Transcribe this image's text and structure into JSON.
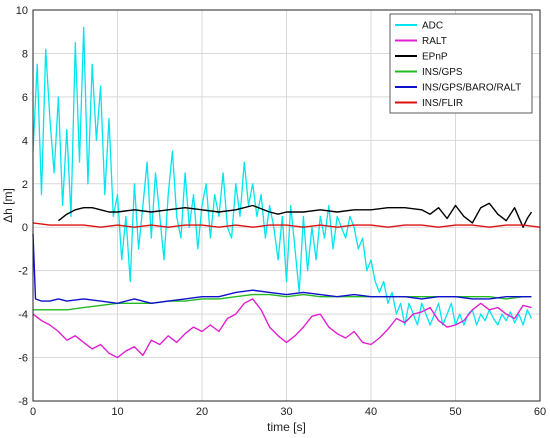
{
  "chart_data": {
    "type": "line",
    "title": "",
    "xlabel": "time  [s]",
    "ylabel": "Δh  [m]",
    "xlim": [
      0,
      60
    ],
    "ylim": [
      -8,
      10
    ],
    "xticks": [
      "0",
      "10",
      "20",
      "30",
      "40",
      "50",
      "60"
    ],
    "yticks": [
      "-8",
      "-6",
      "-4",
      "-2",
      "0",
      "2",
      "4",
      "6",
      "8",
      "10"
    ],
    "grid": true,
    "legend_position": "top-right",
    "series": [
      {
        "name": "ADC",
        "color": "#00e5ee",
        "x": [
          0,
          0.5,
          1,
          1.5,
          2,
          2.5,
          3,
          3.5,
          4,
          4.5,
          5,
          5.5,
          6,
          6.5,
          7,
          7.5,
          8,
          8.5,
          9,
          9.5,
          10,
          10.5,
          11,
          11.5,
          12,
          12.5,
          13,
          13.5,
          14,
          14.5,
          15,
          15.5,
          16,
          16.5,
          17,
          17.5,
          18,
          18.5,
          19,
          19.5,
          20,
          20.5,
          21,
          21.5,
          22,
          22.5,
          23,
          23.5,
          24,
          24.5,
          25,
          25.5,
          26,
          26.5,
          27,
          27.5,
          28,
          28.5,
          29,
          29.5,
          30,
          30.5,
          31,
          31.5,
          32,
          32.5,
          33,
          33.5,
          34,
          34.5,
          35,
          35.5,
          36,
          36.5,
          37,
          37.5,
          38,
          38.5,
          39,
          39.5,
          40,
          40.5,
          41,
          41.5,
          42,
          42.5,
          43,
          43.5,
          44,
          44.5,
          45,
          45.5,
          46,
          46.5,
          47,
          47.5,
          48,
          48.5,
          49,
          49.5,
          50,
          50.5,
          51,
          51.5,
          52,
          52.5,
          53,
          53.5,
          54,
          54.5,
          55,
          55.5,
          56,
          56.5,
          57,
          57.5,
          58,
          58.5,
          59
        ],
        "y": [
          3.5,
          7.5,
          1.5,
          8.2,
          5.0,
          2.5,
          6.0,
          1.0,
          4.5,
          0.5,
          8.5,
          3.0,
          9.2,
          2.0,
          7.5,
          4.0,
          6.5,
          1.5,
          5.0,
          0.5,
          1.5,
          -1.5,
          0.5,
          -2.5,
          2.0,
          -1.0,
          1.0,
          3.0,
          -0.5,
          2.5,
          0.5,
          -1.5,
          1.5,
          3.5,
          0.5,
          -0.5,
          2.5,
          0.0,
          1.5,
          -1.0,
          1.0,
          2.0,
          -0.5,
          1.5,
          0.5,
          2.5,
          0.0,
          -0.5,
          2.0,
          0.5,
          3.0,
          1.0,
          2.0,
          0.5,
          1.5,
          -0.5,
          1.0,
          0.0,
          -1.5,
          0.5,
          -2.5,
          1.0,
          -1.0,
          -3.0,
          0.5,
          -2.0,
          0.0,
          -1.5,
          0.5,
          -0.5,
          1.0,
          -1.0,
          0.5,
          0.0,
          -0.5,
          0.5,
          0.0,
          -1.0,
          -0.5,
          -2.0,
          -1.5,
          -2.5,
          -3.0,
          -2.5,
          -3.5,
          -3.0,
          -4.0,
          -3.5,
          -4.5,
          -3.5,
          -4.0,
          -4.5,
          -3.5,
          -4.0,
          -4.5,
          -4.0,
          -3.5,
          -4.5,
          -4.0,
          -3.5,
          -4.5,
          -4.0,
          -4.5,
          -4.0,
          -3.8,
          -4.5,
          -4.0,
          -4.3,
          -3.8,
          -4.2,
          -4.5,
          -4.0,
          -4.3,
          -3.9,
          -4.4,
          -4.0,
          -4.5,
          -3.8,
          -4.2
        ]
      },
      {
        "name": "RALT",
        "color": "#e020d0",
        "x": [
          0,
          1,
          2,
          3,
          4,
          5,
          6,
          7,
          8,
          9,
          10,
          11,
          12,
          13,
          14,
          15,
          16,
          17,
          18,
          19,
          20,
          21,
          22,
          23,
          24,
          25,
          26,
          27,
          28,
          29,
          30,
          31,
          32,
          33,
          34,
          35,
          36,
          37,
          38,
          39,
          40,
          41,
          42,
          43,
          44,
          45,
          46,
          47,
          48,
          49,
          50,
          51,
          52,
          53,
          54,
          55,
          56,
          57,
          58,
          59
        ],
        "y": [
          -4.0,
          -4.3,
          -4.5,
          -4.8,
          -5.2,
          -5.0,
          -5.3,
          -5.6,
          -5.4,
          -5.8,
          -6.0,
          -5.7,
          -5.5,
          -5.9,
          -5.2,
          -5.4,
          -5.0,
          -5.3,
          -4.9,
          -4.6,
          -4.8,
          -4.5,
          -4.8,
          -4.2,
          -4.0,
          -3.5,
          -3.3,
          -3.8,
          -4.6,
          -5.0,
          -5.3,
          -5.0,
          -4.6,
          -4.1,
          -4.0,
          -4.6,
          -4.9,
          -5.1,
          -4.8,
          -5.3,
          -5.4,
          -5.1,
          -4.7,
          -4.2,
          -4.4,
          -4.0,
          -3.9,
          -3.7,
          -4.3,
          -4.6,
          -4.5,
          -4.3,
          -3.8,
          -3.5,
          -3.8,
          -3.7,
          -4.0,
          -4.2,
          -3.6,
          -3.7
        ]
      },
      {
        "name": "EPnP",
        "color": "#000000",
        "x": [
          3,
          4,
          5,
          6,
          7,
          8,
          9,
          10,
          12,
          14,
          16,
          18,
          20,
          22,
          24,
          26,
          28,
          29,
          30,
          32,
          34,
          36,
          38,
          40,
          42,
          44,
          46,
          47,
          48,
          49,
          50,
          51,
          52,
          53,
          54,
          55,
          56,
          57,
          58,
          58.5,
          59
        ],
        "y": [
          0.3,
          0.6,
          0.8,
          0.9,
          0.9,
          0.8,
          0.7,
          0.7,
          0.8,
          0.7,
          0.8,
          0.9,
          0.8,
          0.7,
          0.8,
          1.0,
          0.7,
          0.6,
          0.7,
          0.7,
          0.8,
          0.7,
          0.8,
          0.8,
          0.9,
          0.9,
          0.8,
          0.6,
          0.9,
          0.4,
          1.0,
          0.5,
          0.2,
          0.9,
          1.1,
          0.6,
          0.3,
          0.9,
          0.0,
          0.4,
          0.7
        ]
      },
      {
        "name": "INS/GPS",
        "color": "#22bb22",
        "x": [
          0,
          2,
          4,
          6,
          8,
          10,
          12,
          14,
          16,
          18,
          20,
          22,
          24,
          26,
          28,
          30,
          32,
          34,
          36,
          38,
          40,
          42,
          44,
          46,
          48,
          50,
          52,
          54,
          56,
          58,
          59
        ],
        "y": [
          -3.8,
          -3.8,
          -3.8,
          -3.7,
          -3.6,
          -3.5,
          -3.5,
          -3.5,
          -3.4,
          -3.4,
          -3.3,
          -3.3,
          -3.2,
          -3.1,
          -3.1,
          -3.2,
          -3.1,
          -3.2,
          -3.2,
          -3.2,
          -3.2,
          -3.2,
          -3.2,
          -3.2,
          -3.2,
          -3.2,
          -3.2,
          -3.2,
          -3.3,
          -3.2,
          -3.2
        ]
      },
      {
        "name": "INS/GPS/BARO/RALT",
        "color": "#1010cc",
        "x": [
          0,
          0.3,
          1,
          2,
          3,
          4,
          6,
          8,
          10,
          12,
          14,
          16,
          18,
          20,
          22,
          24,
          26,
          28,
          30,
          32,
          34,
          36,
          38,
          40,
          42,
          44,
          46,
          48,
          50,
          52,
          54,
          56,
          58,
          59
        ],
        "y": [
          -0.3,
          -3.3,
          -3.4,
          -3.4,
          -3.3,
          -3.4,
          -3.3,
          -3.4,
          -3.5,
          -3.3,
          -3.5,
          -3.4,
          -3.3,
          -3.2,
          -3.2,
          -3.0,
          -2.9,
          -3.0,
          -3.1,
          -3.0,
          -3.1,
          -3.2,
          -3.1,
          -3.2,
          -3.2,
          -3.2,
          -3.3,
          -3.2,
          -3.2,
          -3.3,
          -3.3,
          -3.2,
          -3.2,
          -3.2
        ]
      },
      {
        "name": "INS/FLIR",
        "color": "#dd1111",
        "x": [
          0,
          2,
          4,
          6,
          8,
          10,
          12,
          14,
          16,
          18,
          20,
          22,
          24,
          26,
          28,
          30,
          32,
          34,
          36,
          38,
          40,
          42,
          44,
          46,
          48,
          50,
          52,
          54,
          56,
          58,
          60
        ],
        "y": [
          0.2,
          0.1,
          0.1,
          0.1,
          0.0,
          0.1,
          0.0,
          0.1,
          0.0,
          0.1,
          0.1,
          0.0,
          0.1,
          0.0,
          0.1,
          0.1,
          0.0,
          0.1,
          0.0,
          0.1,
          0.1,
          0.0,
          0.1,
          0.1,
          0.0,
          0.1,
          0.1,
          0.0,
          0.1,
          0.1,
          0.0
        ]
      }
    ]
  }
}
